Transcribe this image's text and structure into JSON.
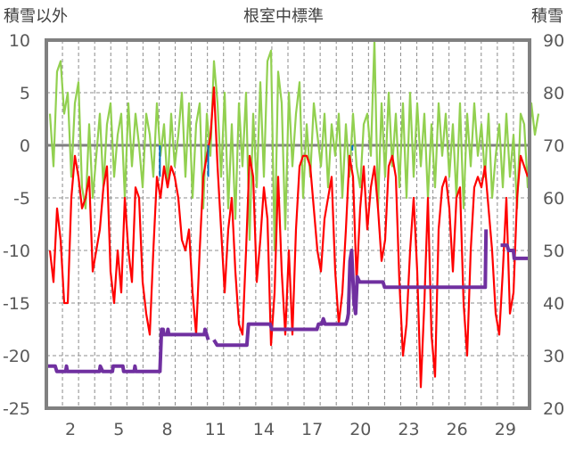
{
  "chart_data": {
    "type": "line",
    "title": "根室中標準",
    "ylabel_left": "積雪以外",
    "ylabel_right": "積雪",
    "xlim_days": [
      0,
      30
    ],
    "ylim_left": [
      -25,
      10
    ],
    "ylim_right": [
      20,
      90
    ],
    "yticks_left": [
      "10",
      "5",
      "0",
      "-5",
      "-10",
      "-15",
      "-20",
      "-25"
    ],
    "yticks_left_values": [
      10,
      5,
      0,
      -5,
      -10,
      -15,
      -20,
      -25
    ],
    "yticks_right": [
      "90",
      "80",
      "70",
      "60",
      "50",
      "40",
      "30",
      "20"
    ],
    "yticks_right_values": [
      90,
      80,
      70,
      60,
      50,
      40,
      30,
      20
    ],
    "xticks": [
      "2",
      "5",
      "8",
      "11",
      "14",
      "17",
      "20",
      "23",
      "26",
      "29"
    ],
    "xticks_values": [
      2,
      5,
      8,
      11,
      14,
      17,
      20,
      23,
      26,
      29
    ],
    "grid": true,
    "colors": {
      "red": "#ff0000",
      "green": "#92d050",
      "purple": "#7030a0",
      "blue": "#0070c0",
      "zero": "#7f7f7f",
      "frame": "#808080"
    },
    "sampled_series": {
      "x_start_day": 0.22,
      "x_step_day": 0.2214,
      "series": [
        {
          "name": "green",
          "axis": "left",
          "values": [
            3,
            -2,
            7,
            8,
            3,
            5,
            -3,
            4,
            6,
            -4,
            -6,
            2,
            -5,
            -1,
            3,
            -4,
            2,
            4,
            -3,
            1,
            3,
            -5,
            4,
            -2,
            3,
            0,
            -4,
            3,
            1,
            -3,
            4,
            -1,
            2,
            -4,
            3,
            -2,
            1,
            5,
            -3,
            4,
            -5,
            2,
            4,
            -6,
            3,
            -1,
            8,
            4,
            -3,
            5,
            -6,
            2,
            -7,
            4,
            -2,
            5,
            -9,
            3,
            -4,
            6,
            -3,
            8,
            9,
            -10,
            7,
            4,
            -8,
            5,
            -2,
            3,
            6,
            -5,
            2,
            -3,
            4,
            1,
            -2,
            3,
            -4,
            2,
            -1,
            3,
            -5,
            2,
            -3,
            3,
            -2,
            -4,
            2,
            3,
            -1,
            10,
            -6,
            4,
            -3,
            5,
            -2,
            3,
            -4,
            4,
            -5,
            5,
            -3,
            4,
            -2,
            3,
            -5,
            2,
            -4,
            4,
            -1,
            3,
            -3,
            2,
            -5,
            4,
            -6,
            3,
            -2,
            4,
            -1,
            2,
            -3,
            3,
            -5,
            -1,
            2,
            -4,
            3,
            -3,
            1,
            -6,
            3,
            2,
            -4,
            4,
            1,
            3
          ]
        },
        {
          "name": "red",
          "axis": "left",
          "values": [
            -10,
            -13,
            -6,
            -9,
            -15,
            -15,
            -5,
            -1,
            -3,
            -6,
            -5,
            -3,
            -12,
            -10,
            -8,
            -4,
            -2,
            -12,
            -15,
            -10,
            -14,
            -5,
            -10,
            -13,
            -4,
            -5,
            -13,
            -16,
            -18,
            -10,
            -3,
            -5,
            -2,
            -4,
            -2,
            -3,
            -5,
            -9,
            -10,
            -8,
            -14,
            -18,
            -10,
            -3,
            -1,
            0.8,
            5.5,
            -2,
            -8,
            -14,
            -8,
            -5,
            -12,
            -17,
            -18,
            -10,
            -1,
            -3,
            -13,
            -9,
            -4,
            -7,
            -19,
            -14,
            -3,
            -12,
            -18,
            -10,
            -18,
            -8,
            -2,
            -1,
            -1,
            -2,
            -6,
            -10,
            -12,
            -7,
            -5,
            -3,
            -12,
            -17,
            -14,
            -8,
            -1,
            -3,
            -13,
            -6,
            -2,
            -8,
            -4,
            -2,
            -6,
            -11,
            -9,
            -2,
            -1,
            -3,
            -13,
            -20,
            -17,
            -10,
            -5,
            -12,
            -23,
            -15,
            -5,
            -18,
            -22,
            -8,
            -4,
            -3,
            -6,
            -12,
            -5,
            -4,
            -15,
            -20,
            -10,
            -4,
            -3,
            -4,
            -2,
            -6,
            -10,
            -16,
            -18,
            -12,
            -5,
            -16,
            -14,
            -5,
            -1,
            -2,
            -3
          ]
        }
      ]
    },
    "snow_depth": {
      "name": "purple",
      "axis": "right",
      "points": [
        [
          0,
          28
        ],
        [
          0.55,
          28
        ],
        [
          0.65,
          27
        ],
        [
          1.2,
          27
        ],
        [
          1.25,
          28
        ],
        [
          1.3,
          27
        ],
        [
          3.3,
          27
        ],
        [
          3.35,
          28
        ],
        [
          3.5,
          27
        ],
        [
          4.1,
          27
        ],
        [
          4.15,
          28
        ],
        [
          4.75,
          28
        ],
        [
          4.8,
          27
        ],
        [
          5.45,
          27
        ],
        [
          5.5,
          28
        ],
        [
          5.55,
          27
        ],
        [
          7.05,
          27
        ],
        [
          7.15,
          35
        ],
        [
          7.25,
          35
        ],
        [
          7.3,
          34
        ],
        [
          7.5,
          34
        ],
        [
          7.55,
          35
        ],
        [
          7.6,
          34
        ],
        [
          9.8,
          34
        ],
        [
          9.85,
          35
        ],
        [
          9.95,
          34
        ],
        [
          10.05,
          33
        ],
        null,
        [
          10.4,
          33
        ],
        [
          10.6,
          32
        ],
        [
          12.45,
          32
        ],
        [
          12.55,
          36
        ],
        [
          13.9,
          36
        ],
        [
          14,
          35
        ],
        [
          16.8,
          35
        ],
        [
          16.9,
          36
        ],
        [
          17.1,
          36
        ],
        [
          17.2,
          37
        ],
        [
          17.3,
          36
        ],
        [
          18.6,
          36
        ],
        [
          18.7,
          37
        ],
        [
          18.75,
          38
        ],
        [
          18.85,
          48
        ],
        [
          18.95,
          50
        ],
        [
          19.1,
          40
        ],
        [
          19.2,
          38
        ],
        [
          19.3,
          45
        ],
        [
          19.45,
          44
        ],
        [
          20.9,
          44
        ],
        [
          21,
          43
        ],
        [
          27.25,
          43
        ],
        [
          27.3,
          54
        ],
        null,
        [
          28.2,
          51
        ],
        [
          28.6,
          51
        ],
        [
          28.7,
          50
        ],
        [
          29,
          50
        ],
        [
          29.05,
          48.5
        ],
        [
          29.9,
          48.5
        ]
      ]
    },
    "blue_points": [
      [
        7.05,
        -3
      ],
      [
        10.05,
        -3
      ],
      [
        19.0,
        -0.5
      ],
      [
        27.3,
        0
      ]
    ],
    "zero_line_value": 0
  }
}
